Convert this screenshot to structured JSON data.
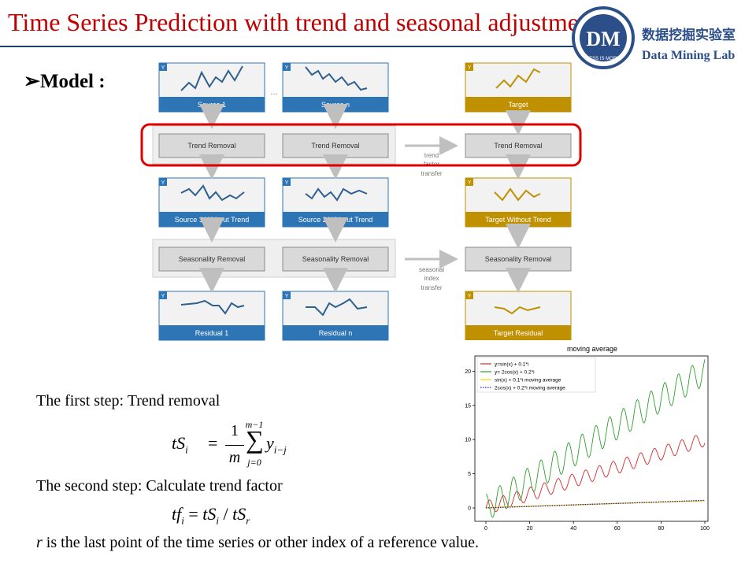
{
  "header": {
    "title": "Time Series Prediction with trend and seasonal adjustment",
    "logo_letters": "DM",
    "logo_motto": "LESS IS MORE",
    "lab_cn": "数据挖掘实验室",
    "lab_en": "Data Mining Lab"
  },
  "model_label": "Model :",
  "diagram": {
    "axis_tag": "Y",
    "ellipsis": "...",
    "sources": [
      {
        "series": "Source 1",
        "no_trend": "Source 1 Without Trend",
        "residual": "Residual 1",
        "trend_box": "Trend Removal",
        "season_box": "Seasonality Removal"
      },
      {
        "series": "Source n",
        "no_trend": "Source 2 Without Trend",
        "residual": "Residual n",
        "trend_box": "Trend Removal",
        "season_box": "Seasonality Removal"
      }
    ],
    "target": {
      "series": "Target",
      "no_trend": "Target Without Trend",
      "residual": "Target Residual",
      "trend_box": "Trend Removal",
      "season_box": "Seasonality Removal"
    },
    "transfer1": [
      "trend",
      "factor",
      "transfer"
    ],
    "transfer2": [
      "seasonal",
      "index",
      "transfer"
    ],
    "colors": {
      "source": "#2e75b6",
      "target": "#bf9000",
      "box": "#d9d9d9",
      "highlight": "#e00000"
    }
  },
  "text": {
    "step1": "The first step: Trend removal",
    "step2": "The second step: Calculate trend factor",
    "note_var": "r",
    "note_rest": " is the last point of the time series or other index of a reference value."
  },
  "formula1": {
    "lhs": "tS",
    "sub": "i",
    "num": "1",
    "den": "m",
    "top": "m−1",
    "bottom": "j=0",
    "term": "y",
    "term_sub": "i−j"
  },
  "formula2": {
    "lhs": "tf",
    "sub": "i",
    "s1": "tS",
    "s1sub": "i",
    "s2": "tS",
    "s2sub": "r"
  },
  "chart_data": {
    "type": "line",
    "title": "moving average",
    "xlim": [
      0,
      100
    ],
    "ylim": [
      -1.5,
      22
    ],
    "xticks": [
      0,
      20,
      40,
      60,
      80,
      100
    ],
    "yticks": [
      0,
      5,
      10,
      15,
      20
    ],
    "legend_position": "top-left",
    "series": [
      {
        "name": "y=sin(x) + 0.1*i",
        "formula": "sin(x)+0.1x",
        "color": "#d62728",
        "style": "solid"
      },
      {
        "name": "y= 2cos(x) + 0.2*i",
        "formula": "2cos(x)+0.2x",
        "color": "#2ca02c",
        "style": "solid"
      },
      {
        "name": "sin(x) + 0.1*i moving average",
        "formula": "0.01x",
        "color": "#ffd700",
        "style": "solid"
      },
      {
        "name": "2cos(x) + 0.2*i moving average",
        "formula": "0.011x",
        "color": "#1f1fbf",
        "style": "dotted"
      }
    ]
  }
}
